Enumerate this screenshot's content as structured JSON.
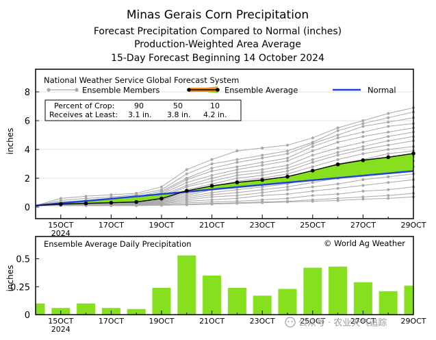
{
  "titles": {
    "line1": "Minas Gerais Corn Precipitation",
    "line2": "Forecast Precipitation Compared to Normal (inches)",
    "line3": "Production-Weighted Area Average",
    "line4": "15-Day Forecast Beginning 14 October 2024"
  },
  "legend": {
    "system": "National Weather Service Global Forecast System",
    "members_label": "Ensemble Members",
    "avg_label": "Ensemble Average",
    "normal_label": "Normal",
    "pct_label": "Percent of Crop:",
    "recv_label": "Receives at Least:",
    "pct_values": [
      "90",
      "50",
      "10"
    ],
    "recv_values": [
      "3.1 in.",
      "3.8 in.",
      "4.2 in."
    ]
  },
  "lower": {
    "title": "Ensemble Average Daily Precipitation",
    "credit": "© World Ag Weather"
  },
  "watermark": "公众号 · 农业天气追踪",
  "colors": {
    "members": "#a8a8a8",
    "average_fill": "#86e01e",
    "average_line": "#000000",
    "normal": "#2243d6",
    "bars": "#86e01e",
    "frame": "#000000"
  },
  "chart_data": [
    {
      "type": "line",
      "ylabel": "inches",
      "ylim": [
        0,
        8
      ],
      "yticks": [
        0,
        2,
        4,
        6,
        8
      ],
      "xlim": [
        14,
        29
      ],
      "xticks": [
        {
          "x": 15,
          "label": "15OCT",
          "year": "2024"
        },
        {
          "x": 17,
          "label": "17OCT",
          "year": ""
        },
        {
          "x": 19,
          "label": "19OCT",
          "year": ""
        },
        {
          "x": 21,
          "label": "21OCT",
          "year": ""
        },
        {
          "x": 23,
          "label": "23OCT",
          "year": ""
        },
        {
          "x": 25,
          "label": "25OCT",
          "year": ""
        },
        {
          "x": 27,
          "label": "27OCT",
          "year": ""
        },
        {
          "x": 29,
          "label": "29OCT",
          "year": ""
        }
      ],
      "x": [
        14,
        15,
        16,
        17,
        18,
        19,
        20,
        21,
        22,
        23,
        24,
        25,
        26,
        27,
        28,
        29
      ],
      "ensemble_average": [
        0.1,
        0.2,
        0.25,
        0.3,
        0.35,
        0.59,
        1.12,
        1.47,
        1.71,
        1.88,
        2.11,
        2.53,
        2.96,
        3.25,
        3.46,
        3.72
      ],
      "normal": [
        0.1,
        0.26,
        0.42,
        0.58,
        0.74,
        0.9,
        1.06,
        1.22,
        1.38,
        1.54,
        1.7,
        1.86,
        2.02,
        2.18,
        2.34,
        2.5
      ],
      "ensemble_members": [
        [
          0.1,
          0.6,
          0.75,
          0.85,
          0.95,
          1.4,
          2.6,
          3.3,
          3.9,
          4.1,
          4.3,
          4.8,
          5.5,
          6.0,
          6.5,
          6.9
        ],
        [
          0.1,
          0.45,
          0.6,
          0.7,
          0.85,
          1.2,
          2.3,
          3.0,
          3.3,
          3.6,
          3.9,
          4.5,
          5.3,
          5.8,
          6.2,
          6.6
        ],
        [
          0.1,
          0.3,
          0.4,
          0.6,
          0.7,
          1.1,
          2.0,
          2.7,
          3.1,
          3.4,
          3.7,
          4.4,
          5.0,
          5.6,
          5.9,
          6.2
        ],
        [
          0.1,
          0.35,
          0.45,
          0.5,
          0.6,
          1.0,
          1.9,
          2.5,
          2.8,
          3.1,
          3.4,
          4.2,
          4.8,
          5.2,
          5.6,
          5.8
        ],
        [
          0.1,
          0.25,
          0.35,
          0.4,
          0.55,
          0.9,
          1.7,
          2.2,
          2.6,
          2.9,
          3.2,
          3.9,
          4.5,
          4.9,
          5.2,
          5.5
        ],
        [
          0.1,
          0.2,
          0.3,
          0.35,
          0.45,
          0.8,
          1.5,
          2.0,
          2.4,
          2.6,
          2.9,
          3.6,
          4.1,
          4.5,
          4.9,
          5.2
        ],
        [
          0.1,
          0.18,
          0.25,
          0.3,
          0.4,
          0.7,
          1.4,
          1.8,
          2.2,
          2.4,
          2.7,
          3.3,
          3.8,
          4.2,
          4.6,
          4.9
        ],
        [
          0.1,
          0.15,
          0.2,
          0.25,
          0.35,
          0.6,
          1.2,
          1.6,
          2.0,
          2.2,
          2.5,
          3.1,
          3.6,
          4.0,
          4.3,
          4.6
        ],
        [
          0.1,
          0.15,
          0.2,
          0.25,
          0.3,
          0.55,
          1.0,
          1.4,
          1.8,
          2.0,
          2.3,
          2.8,
          3.3,
          3.7,
          4.0,
          4.2
        ],
        [
          0.1,
          0.12,
          0.18,
          0.22,
          0.28,
          0.5,
          0.9,
          1.3,
          1.6,
          1.8,
          2.1,
          2.5,
          3.0,
          3.3,
          3.7,
          3.9
        ],
        [
          0.1,
          0.12,
          0.15,
          0.2,
          0.25,
          0.45,
          0.8,
          1.2,
          1.4,
          1.6,
          1.8,
          2.3,
          2.7,
          3.0,
          3.3,
          3.5
        ],
        [
          0.1,
          0.1,
          0.15,
          0.2,
          0.22,
          0.4,
          0.7,
          1.0,
          1.2,
          1.4,
          1.6,
          2.0,
          2.4,
          2.7,
          3.0,
          3.2
        ],
        [
          0.1,
          0.1,
          0.12,
          0.18,
          0.2,
          0.35,
          0.6,
          0.85,
          1.0,
          1.2,
          1.4,
          1.7,
          2.0,
          2.3,
          2.6,
          2.8
        ],
        [
          0.1,
          0.1,
          0.12,
          0.15,
          0.18,
          0.3,
          0.5,
          0.7,
          0.8,
          1.0,
          1.2,
          1.4,
          1.6,
          1.9,
          2.1,
          2.3
        ],
        [
          0.1,
          0.1,
          0.1,
          0.12,
          0.15,
          0.25,
          0.4,
          0.5,
          0.6,
          0.8,
          0.9,
          1.1,
          1.3,
          1.5,
          1.7,
          1.9
        ],
        [
          0.1,
          0.1,
          0.1,
          0.1,
          0.12,
          0.2,
          0.3,
          0.35,
          0.4,
          0.5,
          0.6,
          0.8,
          0.9,
          1.1,
          1.2,
          1.4
        ],
        [
          0.1,
          0.1,
          0.1,
          0.1,
          0.1,
          0.15,
          0.2,
          0.25,
          0.3,
          0.35,
          0.4,
          0.5,
          0.6,
          0.7,
          0.8,
          0.95
        ],
        [
          0.1,
          0.1,
          0.1,
          0.1,
          0.1,
          0.12,
          0.15,
          0.2,
          0.25,
          0.3,
          0.35,
          0.4,
          0.45,
          0.55,
          0.6,
          0.7
        ]
      ]
    },
    {
      "type": "bar",
      "title": "Ensemble Average Daily Precipitation",
      "ylabel": "inches",
      "ylim": [
        0,
        0.55
      ],
      "yticks": [
        0,
        0.25,
        0.5
      ],
      "ytick_labels": [
        "0",
        "0.25",
        "0.5"
      ],
      "x": [
        14,
        15,
        16,
        17,
        18,
        19,
        20,
        21,
        22,
        23,
        24,
        25,
        26,
        27,
        28,
        29
      ],
      "values": [
        0.1,
        0.06,
        0.1,
        0.06,
        0.05,
        0.24,
        0.53,
        0.35,
        0.24,
        0.17,
        0.23,
        0.42,
        0.43,
        0.29,
        0.21,
        0.26
      ]
    }
  ]
}
